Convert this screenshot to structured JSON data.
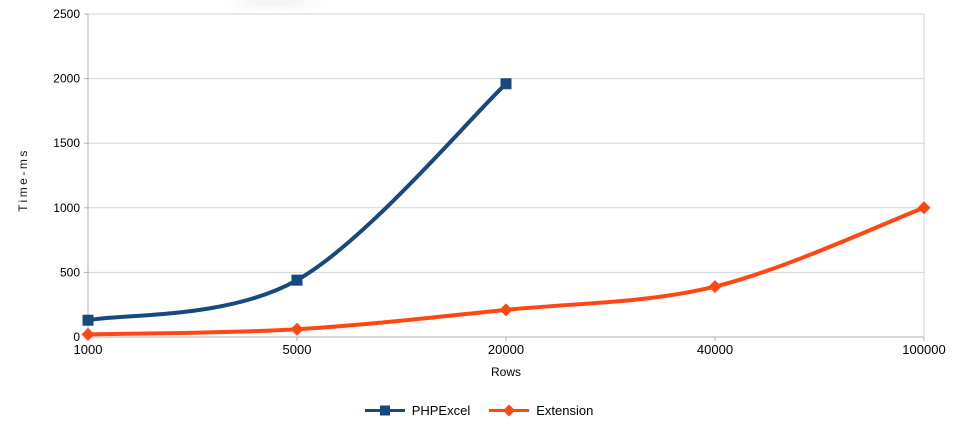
{
  "chart_data": {
    "type": "line",
    "title": "",
    "categories": [
      "1000",
      "5000",
      "20000",
      "40000",
      "100000"
    ],
    "series": [
      {
        "name": "PHPExcel",
        "color": "#17497D",
        "marker": "square",
        "values": [
          130,
          440,
          1960
        ]
      },
      {
        "name": "Extension",
        "color": "#FF4713",
        "marker": "diamond",
        "values": [
          20,
          60,
          210,
          390,
          1000
        ]
      }
    ],
    "xlabel": "Rows",
    "ylabel": "Time-ms",
    "ylim": [
      0,
      2500
    ],
    "yticks": [
      0,
      500,
      1000,
      1500,
      2000,
      2500
    ],
    "grid": "horizontal",
    "legend_position": "bottom",
    "line_smoothing": "spline",
    "grid_color": "#d3d3d3",
    "axis_color": "#b0b0b0",
    "text_color": "#000000",
    "background_color": "#ffffff"
  }
}
